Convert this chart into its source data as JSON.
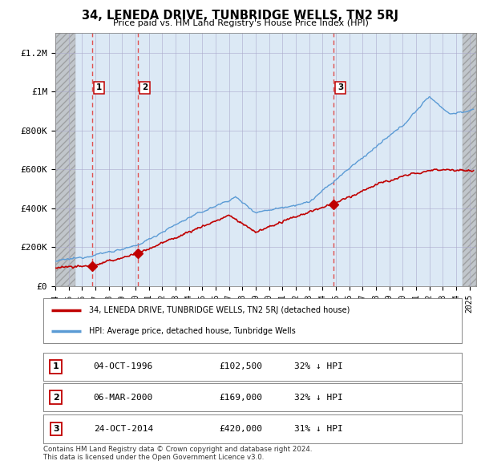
{
  "title": "34, LENEDA DRIVE, TUNBRIDGE WELLS, TN2 5RJ",
  "subtitle": "Price paid vs. HM Land Registry's House Price Index (HPI)",
  "ylabel_ticks": [
    "£0",
    "£200K",
    "£400K",
    "£600K",
    "£800K",
    "£1M",
    "£1.2M"
  ],
  "ytick_values": [
    0,
    200000,
    400000,
    600000,
    800000,
    1000000,
    1200000
  ],
  "ylim": [
    0,
    1300000
  ],
  "sale_dates": [
    1996.75,
    2000.17,
    2014.81
  ],
  "sale_prices": [
    102500,
    169000,
    420000
  ],
  "sale_labels": [
    "1",
    "2",
    "3"
  ],
  "hpi_color": "#5b9bd5",
  "price_color": "#c00000",
  "vline_color": "#e05050",
  "plot_bg_color": "#dce9f5",
  "hatch_bg_color": "#c8c8c8",
  "legend_label_price": "34, LENEDA DRIVE, TUNBRIDGE WELLS, TN2 5RJ (detached house)",
  "legend_label_hpi": "HPI: Average price, detached house, Tunbridge Wells",
  "table_data": [
    [
      "1",
      "04-OCT-1996",
      "£102,500",
      "32% ↓ HPI"
    ],
    [
      "2",
      "06-MAR-2000",
      "£169,000",
      "32% ↓ HPI"
    ],
    [
      "3",
      "24-OCT-2014",
      "£420,000",
      "31% ↓ HPI"
    ]
  ],
  "footnote": "Contains HM Land Registry data © Crown copyright and database right 2024.\nThis data is licensed under the Open Government Licence v3.0.",
  "xmin": 1994.0,
  "xmax": 2025.5,
  "hatch_left_end": 1995.5,
  "hatch_right_start": 2024.5
}
